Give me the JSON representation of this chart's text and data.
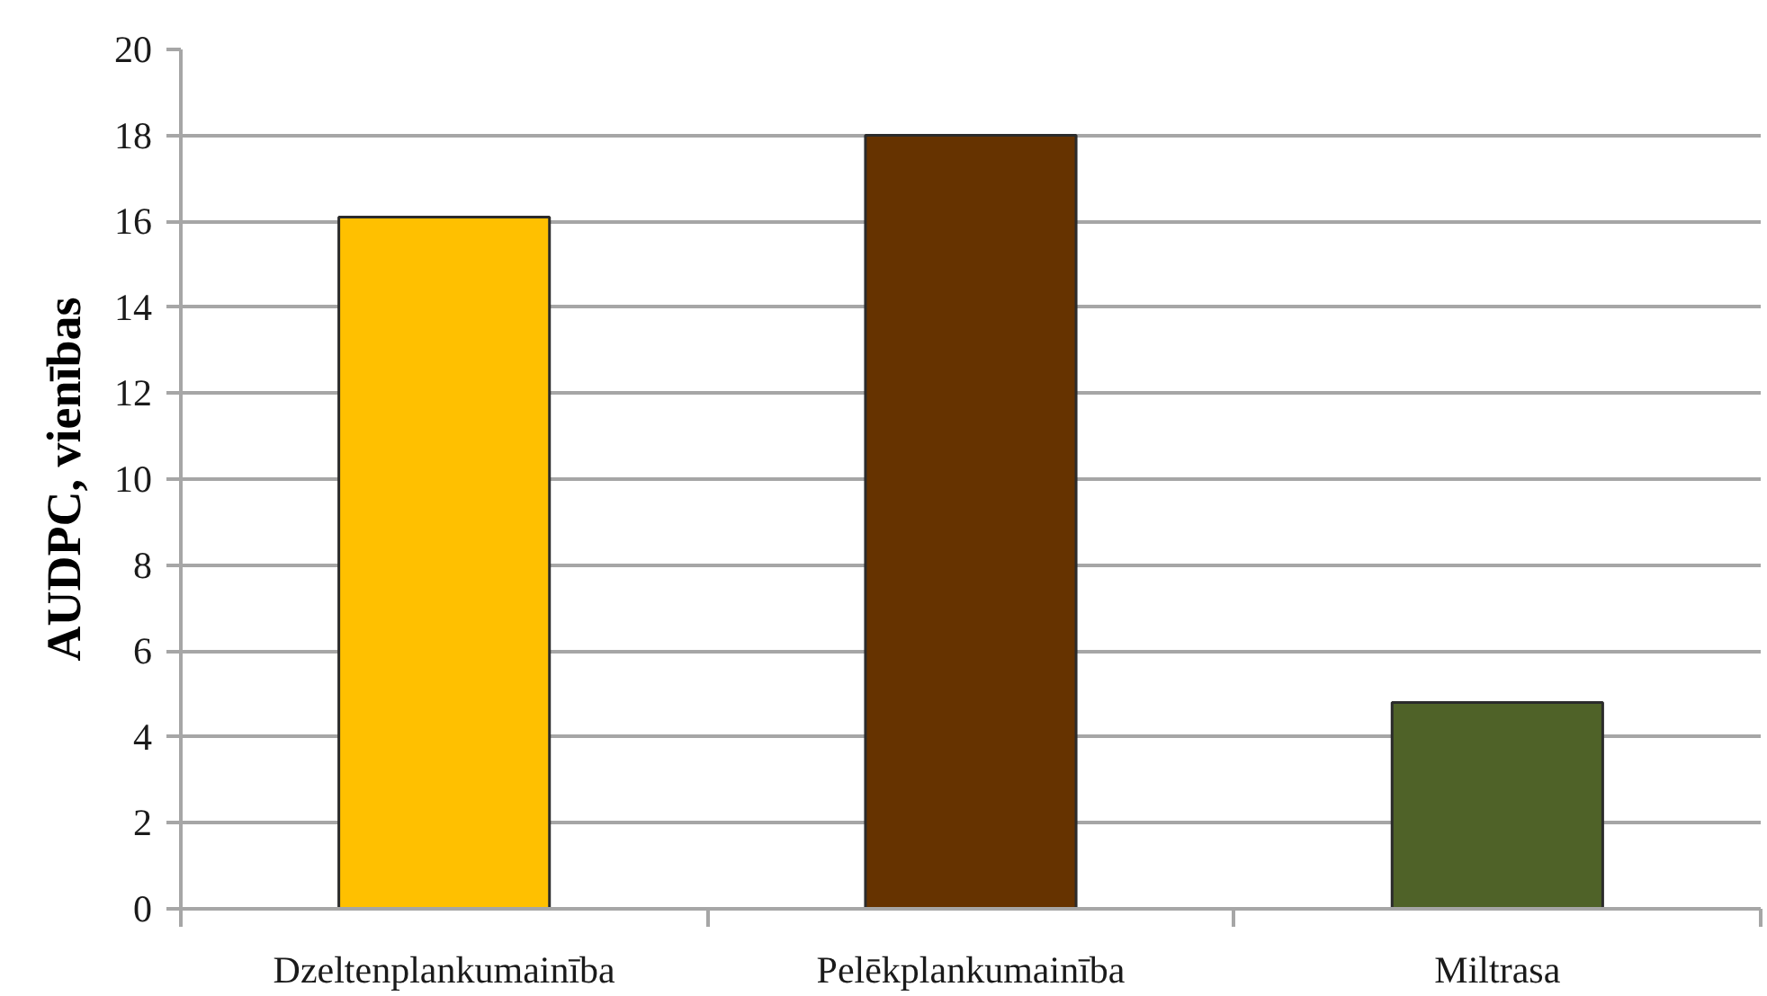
{
  "chart_data": {
    "type": "bar",
    "ylabel": "AUDPC, vienības",
    "categories": [
      "Dzeltenplankumainība",
      "Pelēkplankumainība",
      "Miltrasa"
    ],
    "values": [
      16.1,
      18.0,
      4.8
    ],
    "colors": [
      "#ffc000",
      "#663300",
      "#4f6228"
    ],
    "ylim": [
      0,
      20
    ],
    "yticks": [
      0,
      2,
      4,
      6,
      8,
      10,
      12,
      14,
      16,
      18,
      20
    ],
    "grid": "y"
  }
}
